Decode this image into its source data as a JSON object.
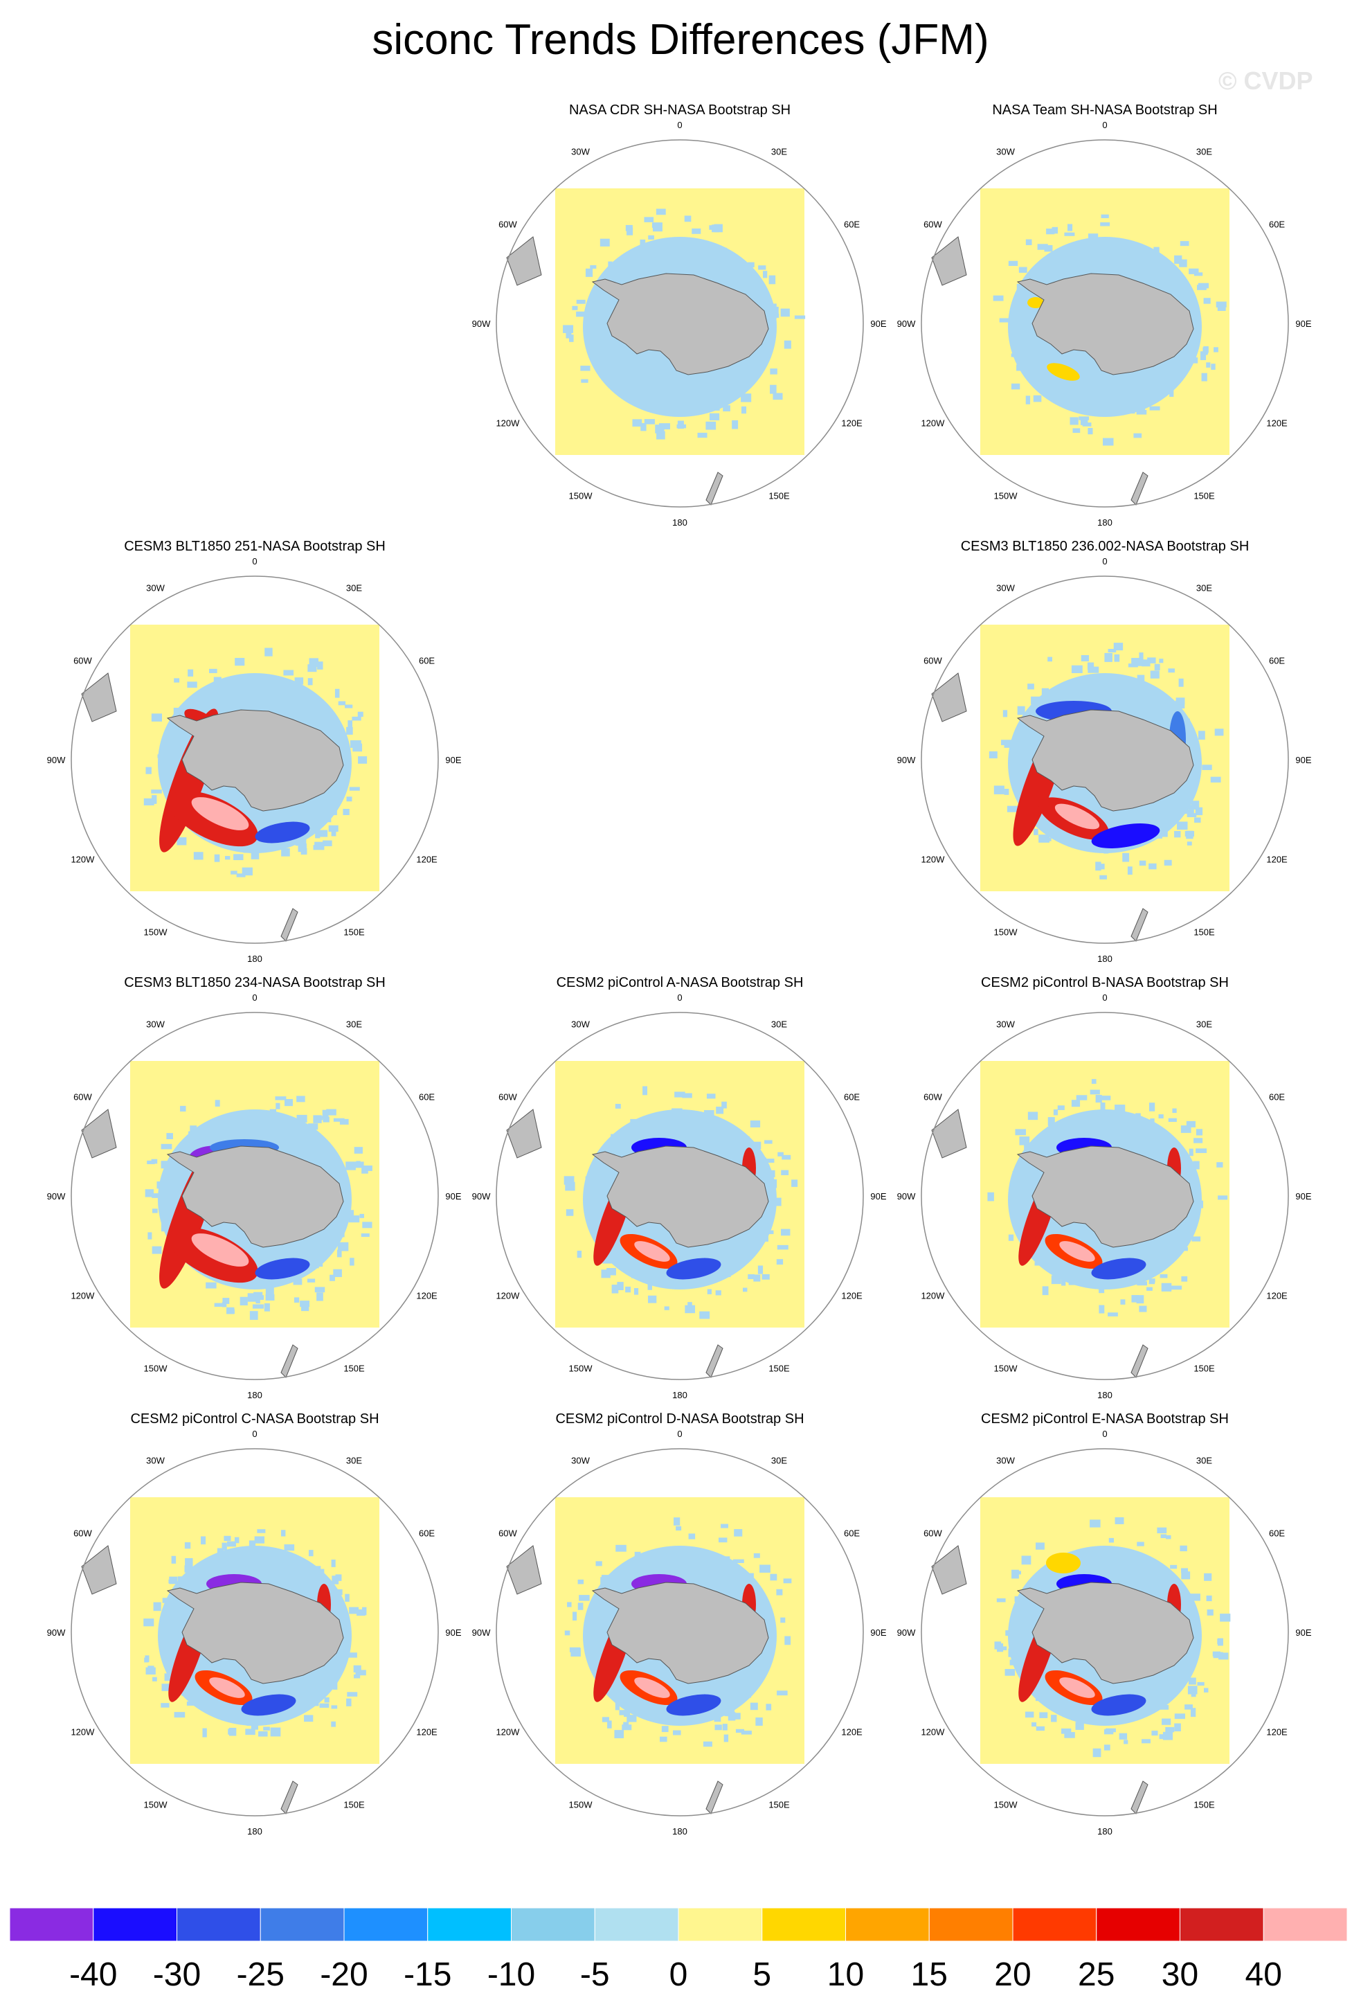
{
  "title": "siconc Trends Differences (JFM)",
  "watermark": "© CVDP",
  "colors": {
    "ocean_background": "#fff68f",
    "land": "#bebebe",
    "map_outline": "#8c8c8c"
  },
  "lon_labels": [
    "0",
    "30E",
    "60E",
    "90E",
    "120E",
    "150E",
    "180",
    "150W",
    "120W",
    "90W",
    "60W",
    "30W"
  ],
  "panels": [
    {
      "title": "NASA CDR SH-NASA Bootstrap SH",
      "pattern": "weak"
    },
    {
      "title": "NASA Team SH-NASA Bootstrap SH",
      "pattern": "weak_warm"
    },
    {
      "title": "CESM3 BLT1850 251-NASA Bootstrap SH",
      "pattern": "strong_red"
    },
    {
      "title": "CESM3 BLT1850 236.002-NASA Bootstrap SH",
      "pattern": "mixed_blue"
    },
    {
      "title": "CESM3 BLT1850 234-NASA Bootstrap SH",
      "pattern": "strong_purple"
    },
    {
      "title": "CESM2 piControl A-NASA Bootstrap SH",
      "pattern": "mixed"
    },
    {
      "title": "CESM2 piControl B-NASA Bootstrap SH",
      "pattern": "mixed"
    },
    {
      "title": "CESM2 piControl C-NASA Bootstrap SH",
      "pattern": "mixed_purple"
    },
    {
      "title": "CESM2 piControl D-NASA Bootstrap SH",
      "pattern": "mixed_purple"
    },
    {
      "title": "CESM2 piControl E-NASA Bootstrap SH",
      "pattern": "mixed_orange"
    }
  ],
  "colorbar": {
    "labels": [
      "-40",
      "-30",
      "-25",
      "-20",
      "-15",
      "-10",
      "-5",
      "0",
      "5",
      "10",
      "15",
      "20",
      "25",
      "30",
      "40"
    ],
    "colors": [
      "#8a2be2",
      "#1a0dff",
      "#2f4fe8",
      "#3f7de8",
      "#1e90ff",
      "#00bfff",
      "#87ceeb",
      "#b0e0f0",
      "#fff68f",
      "#ffd700",
      "#ffa500",
      "#ff7f00",
      "#ff3a00",
      "#e60000",
      "#d21f1f",
      "#ffb0b0"
    ]
  }
}
